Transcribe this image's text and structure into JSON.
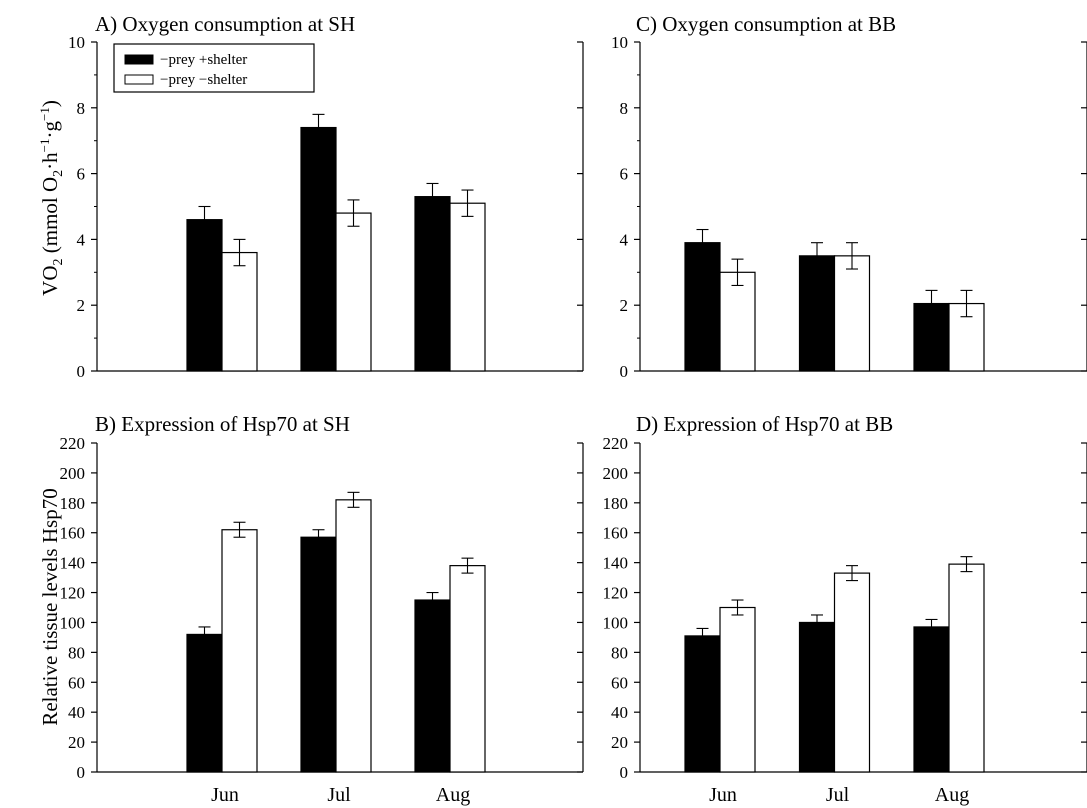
{
  "y_label_top": "VO2 (mmol O2·h−1·g−1)",
  "y_label_top_parts": {
    "main": "VO",
    "sub1": "2",
    "open": " (mmol O",
    "sub2": "2",
    "dot1": "·h",
    "sup1": "−1",
    "dot2": "·g",
    "sup2": "−1",
    "close": ")"
  },
  "y_label_bottom": "Relative tissue levels Hsp70",
  "legend": [
    {
      "name": "−prey +shelter",
      "color": "#000000"
    },
    {
      "name": "−prey −shelter",
      "color": "#ffffff"
    }
  ],
  "chart_data": [
    {
      "type": "bar",
      "title": "A) Oxygen consumption at SH",
      "categories": [
        "Jun",
        "Jul",
        "Aug"
      ],
      "ylim": [
        0,
        10
      ],
      "yticks": [
        0,
        2,
        4,
        6,
        8,
        10
      ],
      "series": [
        {
          "name": "−prey +shelter",
          "values": [
            4.6,
            7.4,
            5.3
          ],
          "errors": [
            0.4,
            0.4,
            0.4
          ]
        },
        {
          "name": "−prey −shelter",
          "values": [
            3.6,
            4.8,
            5.1
          ],
          "errors": [
            0.4,
            0.4,
            0.4
          ]
        }
      ]
    },
    {
      "type": "bar",
      "title": "B) Expression of Hsp70 at SH",
      "categories": [
        "Jun",
        "Jul",
        "Aug"
      ],
      "ylim": [
        0,
        220
      ],
      "yticks": [
        0,
        20,
        40,
        60,
        80,
        100,
        120,
        140,
        160,
        180,
        200,
        220
      ],
      "series": [
        {
          "name": "−prey +shelter",
          "values": [
            92,
            157,
            115
          ],
          "errors": [
            5,
            5,
            5
          ]
        },
        {
          "name": "−prey −shelter",
          "values": [
            162,
            182,
            138
          ],
          "errors": [
            5,
            5,
            5
          ]
        }
      ]
    },
    {
      "type": "bar",
      "title": "C) Oxygen consumption at BB",
      "categories": [
        "Jun",
        "Jul",
        "Aug"
      ],
      "ylim": [
        0,
        10
      ],
      "yticks": [
        0,
        2,
        4,
        6,
        8,
        10
      ],
      "series": [
        {
          "name": "−prey +shelter",
          "values": [
            3.9,
            3.5,
            2.05
          ],
          "errors": [
            0.4,
            0.4,
            0.4
          ]
        },
        {
          "name": "−prey −shelter",
          "values": [
            3.0,
            3.5,
            2.05
          ],
          "errors": [
            0.4,
            0.4,
            0.4
          ]
        }
      ]
    },
    {
      "type": "bar",
      "title": "D) Expression of Hsp70 at BB",
      "categories": [
        "Jun",
        "Jul",
        "Aug"
      ],
      "ylim": [
        0,
        220
      ],
      "yticks": [
        0,
        20,
        40,
        60,
        80,
        100,
        120,
        140,
        160,
        180,
        200,
        220
      ],
      "series": [
        {
          "name": "−prey +shelter",
          "values": [
            91,
            100,
            97
          ],
          "errors": [
            5,
            5,
            5
          ]
        },
        {
          "name": "−prey −shelter",
          "values": [
            110,
            133,
            139
          ],
          "errors": [
            5,
            5,
            5
          ]
        }
      ]
    }
  ]
}
